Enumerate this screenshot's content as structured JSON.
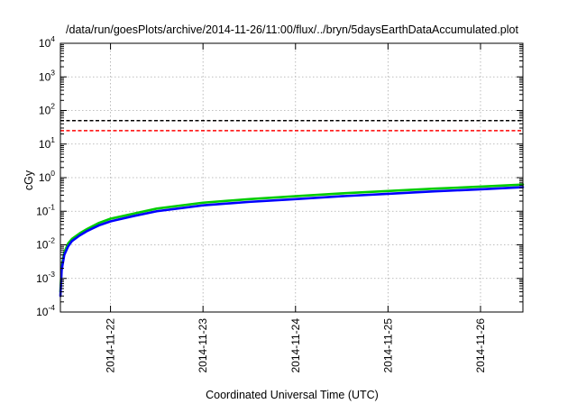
{
  "chart_data": {
    "type": "line",
    "title": "/data/run/goesPlots/archive/2014-11-26/11:00/flux/../bryn/5daysEarthDataAccumulated.plot",
    "xlabel": "Coordinated Universal Time (UTC)",
    "ylabel": "cGy",
    "yscale": "log",
    "ylim": [
      0.0001,
      10000
    ],
    "yticks": [
      {
        "base": "10",
        "exp": "-4",
        "value": 0.0001
      },
      {
        "base": "10",
        "exp": "-3",
        "value": 0.001
      },
      {
        "base": "10",
        "exp": "-2",
        "value": 0.01
      },
      {
        "base": "10",
        "exp": "-1",
        "value": 0.1
      },
      {
        "base": "10",
        "exp": "0",
        "value": 1
      },
      {
        "base": "10",
        "exp": "1",
        "value": 10
      },
      {
        "base": "10",
        "exp": "2",
        "value": 100
      },
      {
        "base": "10",
        "exp": "3",
        "value": 1000
      },
      {
        "base": "10",
        "exp": "4",
        "value": 10000
      }
    ],
    "xlim": [
      "2014-11-21 11:00",
      "2014-11-26 11:00"
    ],
    "xticks": [
      "2014-11-22",
      "2014-11-23",
      "2014-11-24",
      "2014-11-25",
      "2014-11-26"
    ],
    "grid": true,
    "x": [
      "2014-11-21 11:00",
      "2014-11-21 11:20",
      "2014-11-21 12:00",
      "2014-11-21 13:00",
      "2014-11-21 14:00",
      "2014-11-21 16:00",
      "2014-11-21 18:00",
      "2014-11-21 21:00",
      "2014-11-22 00:00",
      "2014-11-22 06:00",
      "2014-11-22 12:00",
      "2014-11-23 00:00",
      "2014-11-23 12:00",
      "2014-11-24 00:00",
      "2014-11-24 12:00",
      "2014-11-25 00:00",
      "2014-11-25 12:00",
      "2014-11-26 00:00",
      "2014-11-26 11:00"
    ],
    "series": [
      {
        "color": "#000000",
        "dashed": true,
        "values": [
          50,
          50,
          50,
          50,
          50,
          50,
          50,
          50,
          50,
          50,
          50,
          50,
          50,
          50,
          50,
          50,
          50,
          50,
          50
        ]
      },
      {
        "color": "#ff0000",
        "dashed": true,
        "values": [
          25,
          25,
          25,
          25,
          25,
          25,
          25,
          25,
          25,
          25,
          25,
          25,
          25,
          25,
          25,
          25,
          25,
          25,
          25
        ]
      },
      {
        "color": "#00cc00",
        "dashed": false,
        "values": [
          0.0004,
          0.0022,
          0.006,
          0.011,
          0.015,
          0.022,
          0.03,
          0.045,
          0.06,
          0.085,
          0.12,
          0.18,
          0.23,
          0.28,
          0.34,
          0.4,
          0.47,
          0.54,
          0.62
        ]
      },
      {
        "color": "#0000ff",
        "dashed": false,
        "values": [
          0.0003,
          0.0018,
          0.005,
          0.009,
          0.013,
          0.019,
          0.026,
          0.038,
          0.05,
          0.072,
          0.1,
          0.15,
          0.19,
          0.23,
          0.28,
          0.33,
          0.39,
          0.45,
          0.52
        ]
      }
    ]
  }
}
